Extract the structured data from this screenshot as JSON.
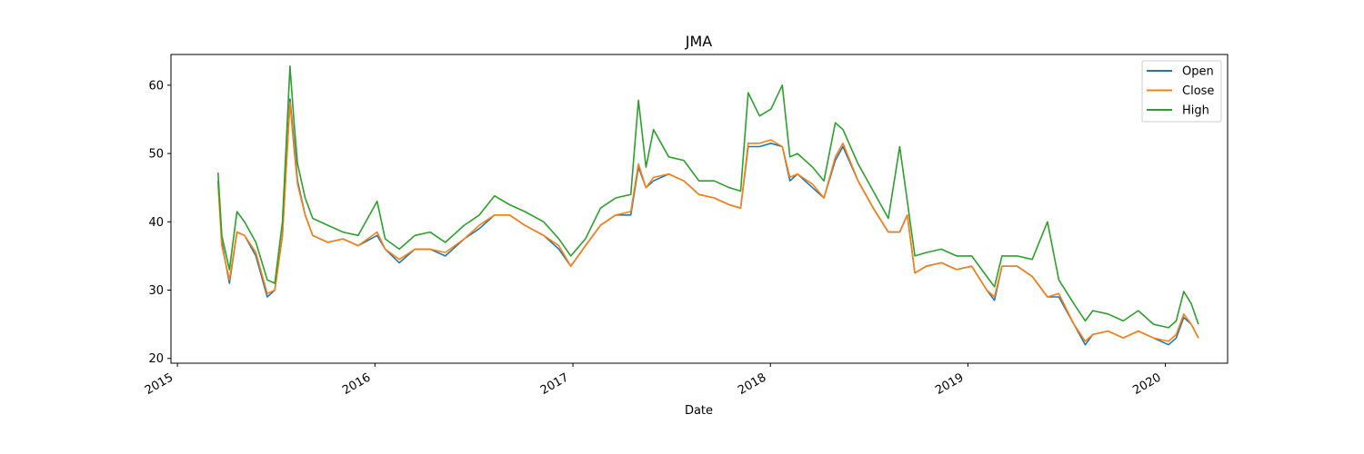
{
  "chart_data": {
    "type": "line",
    "title": "JMA",
    "xlabel": "Date",
    "ylabel": "",
    "xlim": [
      "2014-12-20",
      "2020-04-25"
    ],
    "ylim": [
      19.3,
      64.5
    ],
    "x_ticks": [
      "2015",
      "2016",
      "2017",
      "2018",
      "2019",
      "2020"
    ],
    "y_ticks": [
      20,
      30,
      40,
      50,
      60
    ],
    "grid": false,
    "legend_position": "top-right",
    "colors": {
      "Open": "#1f77b4",
      "Close": "#ff7f0e",
      "High": "#2ca02c"
    },
    "x": [
      "2015-03-17",
      "2015-03-24",
      "2015-04-07",
      "2015-04-21",
      "2015-05-05",
      "2015-05-26",
      "2015-06-16",
      "2015-06-30",
      "2015-07-14",
      "2015-07-28",
      "2015-08-04",
      "2015-08-11",
      "2015-08-25",
      "2015-09-08",
      "2015-10-06",
      "2015-11-03",
      "2015-12-01",
      "2016-01-05",
      "2016-01-20",
      "2016-02-15",
      "2016-03-15",
      "2016-04-12",
      "2016-05-10",
      "2016-06-14",
      "2016-07-12",
      "2016-08-09",
      "2016-09-06",
      "2016-10-04",
      "2016-11-08",
      "2016-12-06",
      "2016-12-28",
      "2017-01-24",
      "2017-02-21",
      "2017-03-21",
      "2017-04-18",
      "2017-05-02",
      "2017-05-16",
      "2017-05-30",
      "2017-06-27",
      "2017-07-25",
      "2017-08-22",
      "2017-09-19",
      "2017-10-17",
      "2017-11-07",
      "2017-11-21",
      "2017-12-12",
      "2018-01-02",
      "2018-01-23",
      "2018-02-06",
      "2018-02-20",
      "2018-03-20",
      "2018-04-10",
      "2018-05-01",
      "2018-05-15",
      "2018-06-12",
      "2018-07-10",
      "2018-08-07",
      "2018-08-28",
      "2018-09-11",
      "2018-09-25",
      "2018-10-16",
      "2018-11-13",
      "2018-12-11",
      "2019-01-08",
      "2019-02-05",
      "2019-02-19",
      "2019-03-05",
      "2019-04-02",
      "2019-04-30",
      "2019-05-28",
      "2019-06-18",
      "2019-07-16",
      "2019-08-06",
      "2019-08-20",
      "2019-09-17",
      "2019-10-15",
      "2019-11-12",
      "2019-12-10",
      "2020-01-07",
      "2020-01-21",
      "2020-02-04",
      "2020-02-18",
      "2020-03-02"
    ],
    "series": [
      {
        "name": "Open",
        "values": [
          46.0,
          37.0,
          31.0,
          38.5,
          38.0,
          35.0,
          29.0,
          30.0,
          38.0,
          58.0,
          52.0,
          46.0,
          41.0,
          38.0,
          37.0,
          37.5,
          36.5,
          38.0,
          36.0,
          34.0,
          36.0,
          36.0,
          35.0,
          37.5,
          39.0,
          41.0,
          41.0,
          39.5,
          38.0,
          36.0,
          33.5,
          36.5,
          39.5,
          41.0,
          41.0,
          48.0,
          45.0,
          46.0,
          47.0,
          46.0,
          44.0,
          43.5,
          42.5,
          42.0,
          51.0,
          51.0,
          51.5,
          51.0,
          46.0,
          47.0,
          45.0,
          43.5,
          49.0,
          51.0,
          46.0,
          42.0,
          38.5,
          38.5,
          41.0,
          32.5,
          33.5,
          34.0,
          33.0,
          33.5,
          30.0,
          28.5,
          33.5,
          33.5,
          32.0,
          29.0,
          29.0,
          25.0,
          22.0,
          23.5,
          24.0,
          23.0,
          24.0,
          23.0,
          22.0,
          23.0,
          26.0,
          25.0,
          23.0
        ]
      },
      {
        "name": "Close",
        "values": [
          45.5,
          36.5,
          31.5,
          38.5,
          38.0,
          35.5,
          29.5,
          30.0,
          38.0,
          57.5,
          51.0,
          45.5,
          41.0,
          38.0,
          37.0,
          37.5,
          36.5,
          38.5,
          36.0,
          34.5,
          36.0,
          36.0,
          35.5,
          37.5,
          39.5,
          41.0,
          41.0,
          39.5,
          38.0,
          36.5,
          33.5,
          36.5,
          39.5,
          41.0,
          41.5,
          48.5,
          45.0,
          46.5,
          47.0,
          46.0,
          44.0,
          43.5,
          42.5,
          42.0,
          51.5,
          51.5,
          52.0,
          51.0,
          46.5,
          47.0,
          45.5,
          43.5,
          49.5,
          51.5,
          46.0,
          42.0,
          38.5,
          38.5,
          41.0,
          32.5,
          33.5,
          34.0,
          33.0,
          33.5,
          30.0,
          29.0,
          33.5,
          33.5,
          32.0,
          29.0,
          29.5,
          25.0,
          22.5,
          23.5,
          24.0,
          23.0,
          24.0,
          23.0,
          22.5,
          23.5,
          26.5,
          25.0,
          23.0
        ]
      },
      {
        "name": "High",
        "values": [
          47.2,
          38.0,
          33.0,
          41.5,
          40.0,
          37.0,
          31.5,
          31.0,
          40.0,
          62.8,
          55.0,
          48.5,
          43.5,
          40.5,
          39.5,
          38.5,
          38.0,
          43.0,
          37.5,
          36.0,
          38.0,
          38.5,
          37.0,
          39.5,
          41.0,
          43.8,
          42.5,
          41.5,
          40.0,
          37.5,
          35.0,
          37.5,
          42.0,
          43.5,
          44.0,
          57.8,
          48.0,
          53.5,
          49.5,
          49.0,
          46.0,
          46.0,
          45.0,
          44.5,
          58.9,
          55.5,
          56.5,
          60.0,
          49.5,
          50.0,
          48.0,
          46.0,
          54.5,
          53.5,
          48.5,
          44.5,
          40.5,
          51.0,
          43.0,
          35.0,
          35.5,
          36.0,
          35.0,
          35.0,
          32.0,
          30.5,
          35.0,
          35.0,
          34.5,
          40.0,
          31.5,
          28.0,
          25.5,
          27.0,
          26.5,
          25.5,
          27.0,
          25.0,
          24.5,
          25.5,
          29.8,
          28.0,
          25.0
        ]
      }
    ]
  }
}
